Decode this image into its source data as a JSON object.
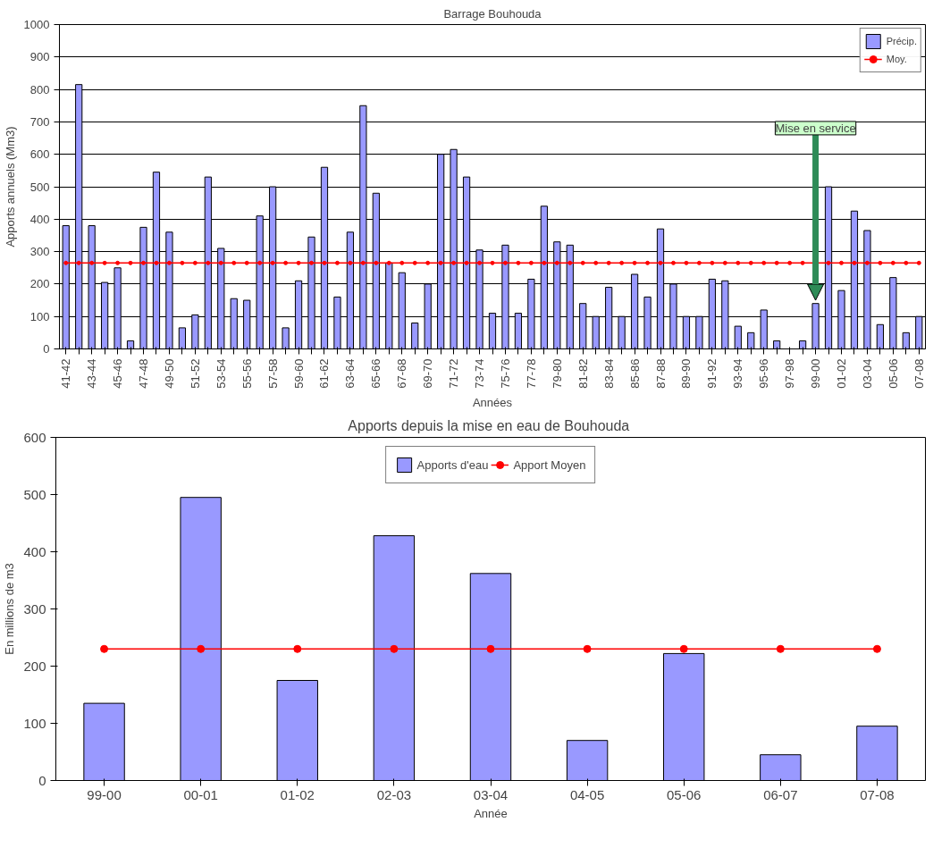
{
  "chart_data": [
    {
      "type": "bar",
      "title": "Barrage Bouhouda",
      "xlabel": "Années",
      "ylabel": "Apports annuels (Mm3)",
      "categories": [
        "41-42",
        null,
        "43-44",
        null,
        "45-46",
        null,
        "47-48",
        null,
        "49-50",
        null,
        "51-52",
        null,
        "53-54",
        null,
        "55-56",
        null,
        "57-58",
        null,
        "59-60",
        null,
        "61-62",
        null,
        "63-64",
        null,
        "65-66",
        null,
        "67-68",
        null,
        "69-70",
        null,
        "71-72",
        null,
        "73-74",
        null,
        "75-76",
        null,
        "77-78",
        null,
        "79-80",
        null,
        "81-82",
        null,
        "83-84",
        null,
        "85-86",
        null,
        "87-88",
        null,
        "89-90",
        null,
        "91-92",
        null,
        "93-94",
        null,
        "95-96",
        null,
        "97-98",
        null,
        "99-00",
        null,
        "01-02",
        null,
        "03-04",
        null,
        "05-06",
        null,
        "07-08"
      ],
      "series": [
        {
          "name": "Précip.",
          "color": "#9999ff",
          "values": [
            380,
            815,
            380,
            205,
            250,
            25,
            375,
            545,
            360,
            65,
            105,
            530,
            310,
            155,
            150,
            410,
            500,
            65,
            210,
            345,
            560,
            160,
            360,
            750,
            480,
            265,
            235,
            80,
            200,
            600,
            615,
            530,
            305,
            110,
            320,
            110,
            215,
            440,
            330,
            320,
            140,
            100,
            190,
            100,
            230,
            160,
            370,
            200,
            100,
            100,
            215,
            210,
            70,
            50,
            120,
            25,
            null,
            25,
            140,
            500,
            180,
            425,
            365,
            75,
            220,
            50,
            100
          ]
        },
        {
          "name": "Moy.",
          "type": "line",
          "color": "#ff0000",
          "marker": "circle",
          "values": [
            265,
            265,
            265,
            265,
            265,
            265,
            265,
            265,
            265,
            265,
            265,
            265,
            265,
            265,
            265,
            265,
            265,
            265,
            265,
            265,
            265,
            265,
            265,
            265,
            265,
            265,
            265,
            265,
            265,
            265,
            265,
            265,
            265,
            265,
            265,
            265,
            265,
            265,
            265,
            265,
            265,
            265,
            265,
            265,
            265,
            265,
            265,
            265,
            265,
            265,
            265,
            265,
            265,
            265,
            265,
            265,
            265,
            265,
            265,
            265,
            265,
            265,
            265,
            265,
            265,
            265,
            265
          ]
        }
      ],
      "ylim": [
        0,
        1000
      ],
      "yticks": [
        0,
        100,
        200,
        300,
        400,
        500,
        600,
        700,
        800,
        900,
        1000
      ],
      "grid": "y",
      "legend": "top right",
      "annotations": [
        {
          "text": "Mise en service",
          "x": "99-00",
          "y": 150
        }
      ]
    },
    {
      "type": "bar",
      "title": "Apports depuis la mise  en eau de Bouhouda",
      "xlabel": "Année",
      "ylabel": "En millions de m3",
      "categories": [
        "99-00",
        "00-01",
        "01-02",
        "02-03",
        "03-04",
        "04-05",
        "05-06",
        "06-07",
        "07-08"
      ],
      "series": [
        {
          "name": "Apports d'eau",
          "color": "#9999ff",
          "values": [
            135,
            495,
            175,
            428,
            362,
            70,
            222,
            45,
            95
          ]
        },
        {
          "name": "Apport Moyen",
          "type": "line",
          "color": "#ff0000",
          "marker": "circle",
          "values": [
            230,
            230,
            230,
            230,
            230,
            230,
            230,
            230,
            230
          ]
        }
      ],
      "ylim": [
        0,
        600
      ],
      "yticks": [
        0,
        100,
        200,
        300,
        400,
        500,
        600
      ],
      "grid": false,
      "legend": "top"
    }
  ]
}
